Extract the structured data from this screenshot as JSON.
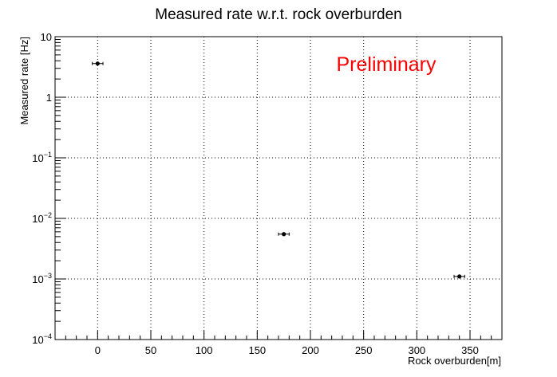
{
  "chart_data": {
    "type": "scatter",
    "title": "Measured rate w.r.t. rock overburden",
    "xlabel": "Rock overburden[m]",
    "ylabel": "Measured rate [Hz]",
    "annotation": "Preliminary",
    "annotation_color": "#ff0000",
    "xlim": [
      -40,
      380
    ],
    "ylim": [
      0.0001,
      10
    ],
    "yscale": "log",
    "grid": true,
    "x_ticks": [
      0,
      50,
      100,
      150,
      200,
      250,
      300,
      350
    ],
    "y_ticks": [
      {
        "value": 10,
        "label": "10"
      },
      {
        "value": 1,
        "label": "1"
      },
      {
        "value": 0.1,
        "base": "10",
        "exp": "−1"
      },
      {
        "value": 0.01,
        "base": "10",
        "exp": "−2"
      },
      {
        "value": 0.001,
        "base": "10",
        "exp": "−3"
      },
      {
        "value": 0.0001,
        "base": "10",
        "exp": "−4"
      }
    ],
    "series": [
      {
        "points": [
          {
            "x": 0,
            "y": 3.6,
            "xerr": 5
          },
          {
            "x": 175,
            "y": 0.0055,
            "xerr": 5
          },
          {
            "x": 340,
            "y": 0.0011,
            "xerr": 5
          }
        ]
      }
    ]
  }
}
